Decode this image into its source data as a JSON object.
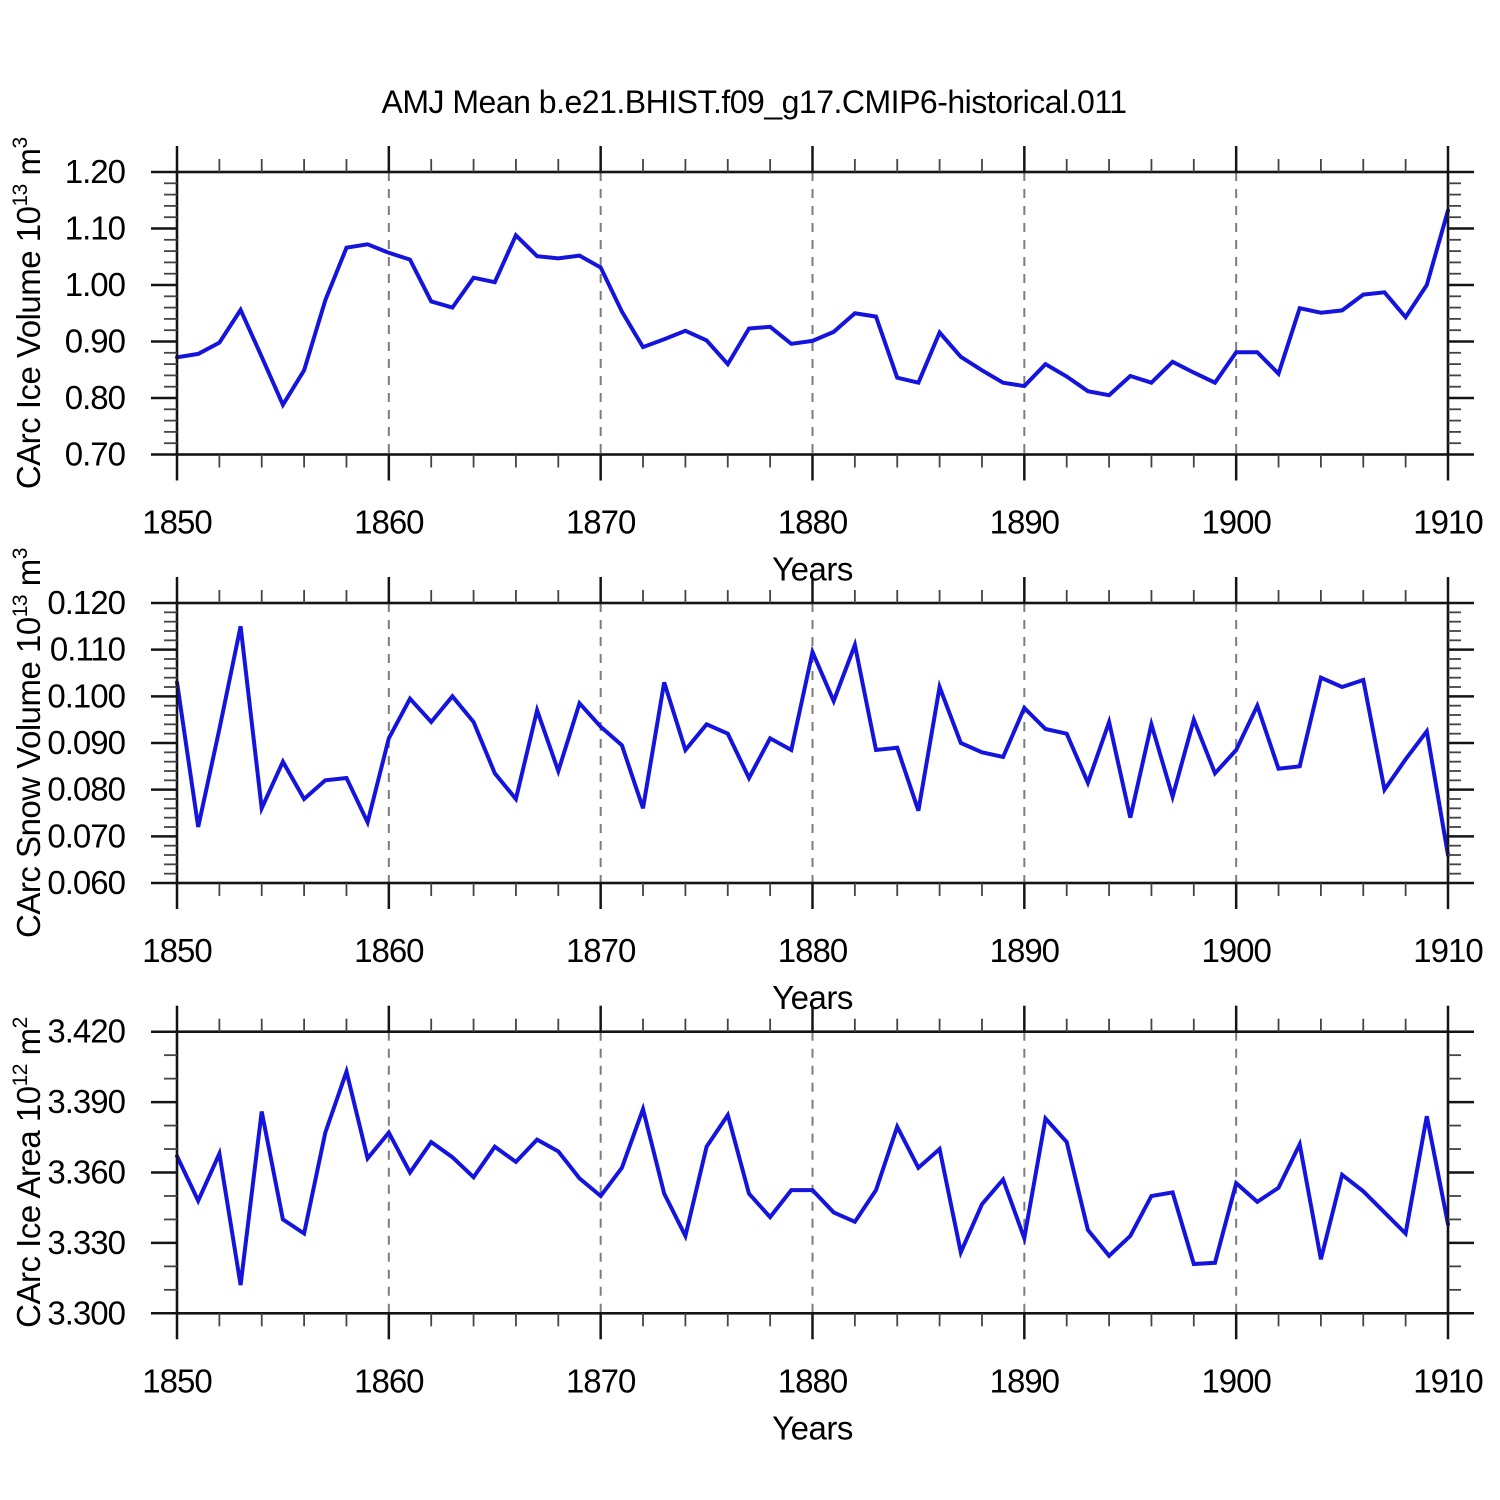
{
  "title": "AMJ Mean b.e21.BHIST.f09_g17.CMIP6-historical.011",
  "x_axis": {
    "label": "Years",
    "min": 1850,
    "max": 1910,
    "major_ticks": [
      1850,
      1860,
      1870,
      1880,
      1890,
      1900,
      1910
    ],
    "tick_labels": [
      "1850",
      "1860",
      "1870",
      "1880",
      "1890",
      "1900",
      "1910"
    ],
    "minor_step": 2,
    "grid_years": [
      1860,
      1870,
      1880,
      1890,
      1900
    ],
    "grid_style": "dashed"
  },
  "colors": {
    "line": "#1414dd",
    "axis": "#141414",
    "minor_tick": "#444444",
    "grid": "#7d7d7d",
    "text": "#000000",
    "background": "#ffffff"
  },
  "years": [
    1850,
    1851,
    1852,
    1853,
    1854,
    1855,
    1856,
    1857,
    1858,
    1859,
    1860,
    1861,
    1862,
    1863,
    1864,
    1865,
    1866,
    1867,
    1868,
    1869,
    1870,
    1871,
    1872,
    1873,
    1874,
    1875,
    1876,
    1877,
    1878,
    1879,
    1880,
    1881,
    1882,
    1883,
    1884,
    1885,
    1886,
    1887,
    1888,
    1889,
    1890,
    1891,
    1892,
    1893,
    1894,
    1895,
    1896,
    1897,
    1898,
    1899,
    1900,
    1901,
    1902,
    1903,
    1904,
    1905,
    1906,
    1907,
    1908,
    1909,
    1910
  ],
  "chart_data": [
    {
      "type": "line",
      "name": "ice-volume",
      "ylabel": "CArc Ice Volume 10^13 m^3",
      "ylabel_parts": [
        {
          "t": "CArc Ice Volume 10"
        },
        {
          "t": "13",
          "sup": true
        },
        {
          "t": " m"
        },
        {
          "t": "3",
          "sup": true
        }
      ],
      "ylim": [
        0.7,
        1.2
      ],
      "ymajor_step": 0.1,
      "yminor_step": 0.02,
      "ytick_labels": [
        "0.70",
        "0.80",
        "0.90",
        "1.00",
        "1.10",
        "1.20"
      ],
      "xlabel": "Years",
      "grid": "vertical-dashed",
      "legend": "none",
      "values": [
        0.872,
        0.878,
        0.898,
        0.956,
        0.873,
        0.788,
        0.849,
        0.973,
        1.066,
        1.072,
        1.057,
        1.045,
        0.971,
        0.96,
        1.013,
        1.005,
        1.088,
        1.051,
        1.047,
        1.052,
        1.031,
        0.953,
        0.89,
        0.904,
        0.919,
        0.902,
        0.86,
        0.923,
        0.926,
        0.896,
        0.901,
        0.917,
        0.95,
        0.944,
        0.836,
        0.827,
        0.916,
        0.873,
        0.849,
        0.827,
        0.821,
        0.86,
        0.838,
        0.812,
        0.805,
        0.839,
        0.827,
        0.864,
        0.845,
        0.827,
        0.881,
        0.881,
        0.843,
        0.959,
        0.951,
        0.955,
        0.983,
        0.987,
        0.943,
        1.0,
        1.132
      ]
    },
    {
      "type": "line",
      "name": "snow-volume",
      "ylabel": "CArc Snow Volume 10^13 m^3",
      "ylabel_parts": [
        {
          "t": "CArc Snow Volume 10"
        },
        {
          "t": "13",
          "sup": true
        },
        {
          "t": " m"
        },
        {
          "t": "3",
          "sup": true
        }
      ],
      "ylim": [
        0.06,
        0.12
      ],
      "ymajor_step": 0.01,
      "yminor_step": 0.002,
      "ytick_labels": [
        "0.060",
        "0.070",
        "0.080",
        "0.090",
        "0.100",
        "0.110",
        "0.120"
      ],
      "xlabel": "Years",
      "grid": "vertical-dashed",
      "legend": "none",
      "values": [
        0.103,
        0.072,
        0.093,
        0.115,
        0.076,
        0.086,
        0.078,
        0.082,
        0.0825,
        0.073,
        0.091,
        0.0995,
        0.0945,
        0.1,
        0.0945,
        0.0835,
        0.078,
        0.097,
        0.084,
        0.0985,
        0.0935,
        0.0895,
        0.076,
        0.103,
        0.0885,
        0.094,
        0.092,
        0.0825,
        0.091,
        0.0885,
        0.1095,
        0.099,
        0.111,
        0.0885,
        0.089,
        0.0755,
        0.102,
        0.09,
        0.088,
        0.087,
        0.0975,
        0.093,
        0.092,
        0.0815,
        0.0945,
        0.074,
        0.094,
        0.0785,
        0.095,
        0.0835,
        0.0885,
        0.098,
        0.0845,
        0.085,
        0.104,
        0.102,
        0.1035,
        0.08,
        0.0865,
        0.0925,
        0.066
      ]
    },
    {
      "type": "line",
      "name": "ice-area",
      "ylabel": "CArc Ice Area 10^12 m^2",
      "ylabel_parts": [
        {
          "t": "CArc Ice Area 10"
        },
        {
          "t": "12",
          "sup": true
        },
        {
          "t": " m"
        },
        {
          "t": "2",
          "sup": true
        }
      ],
      "ylim": [
        3.3,
        3.42
      ],
      "ymajor_step": 0.03,
      "yminor_step": 0.01,
      "ytick_labels": [
        "3.300",
        "3.330",
        "3.360",
        "3.390",
        "3.420"
      ],
      "xlabel": "Years",
      "grid": "vertical-dashed",
      "legend": "none",
      "values": [
        3.367,
        3.348,
        3.368,
        3.312,
        3.386,
        3.34,
        3.334,
        3.377,
        3.403,
        3.366,
        3.377,
        3.36,
        3.373,
        3.3665,
        3.358,
        3.371,
        3.3645,
        3.374,
        3.369,
        3.3575,
        3.35,
        3.362,
        3.387,
        3.351,
        3.333,
        3.371,
        3.3845,
        3.351,
        3.341,
        3.3525,
        3.3525,
        3.343,
        3.339,
        3.3525,
        3.3795,
        3.362,
        3.37,
        3.326,
        3.3465,
        3.357,
        3.332,
        3.383,
        3.373,
        3.3355,
        3.3245,
        3.333,
        3.35,
        3.3515,
        3.321,
        3.3215,
        3.3555,
        3.3475,
        3.3535,
        3.372,
        3.323,
        3.359,
        3.352,
        3.343,
        3.334,
        3.384,
        3.338
      ]
    }
  ]
}
